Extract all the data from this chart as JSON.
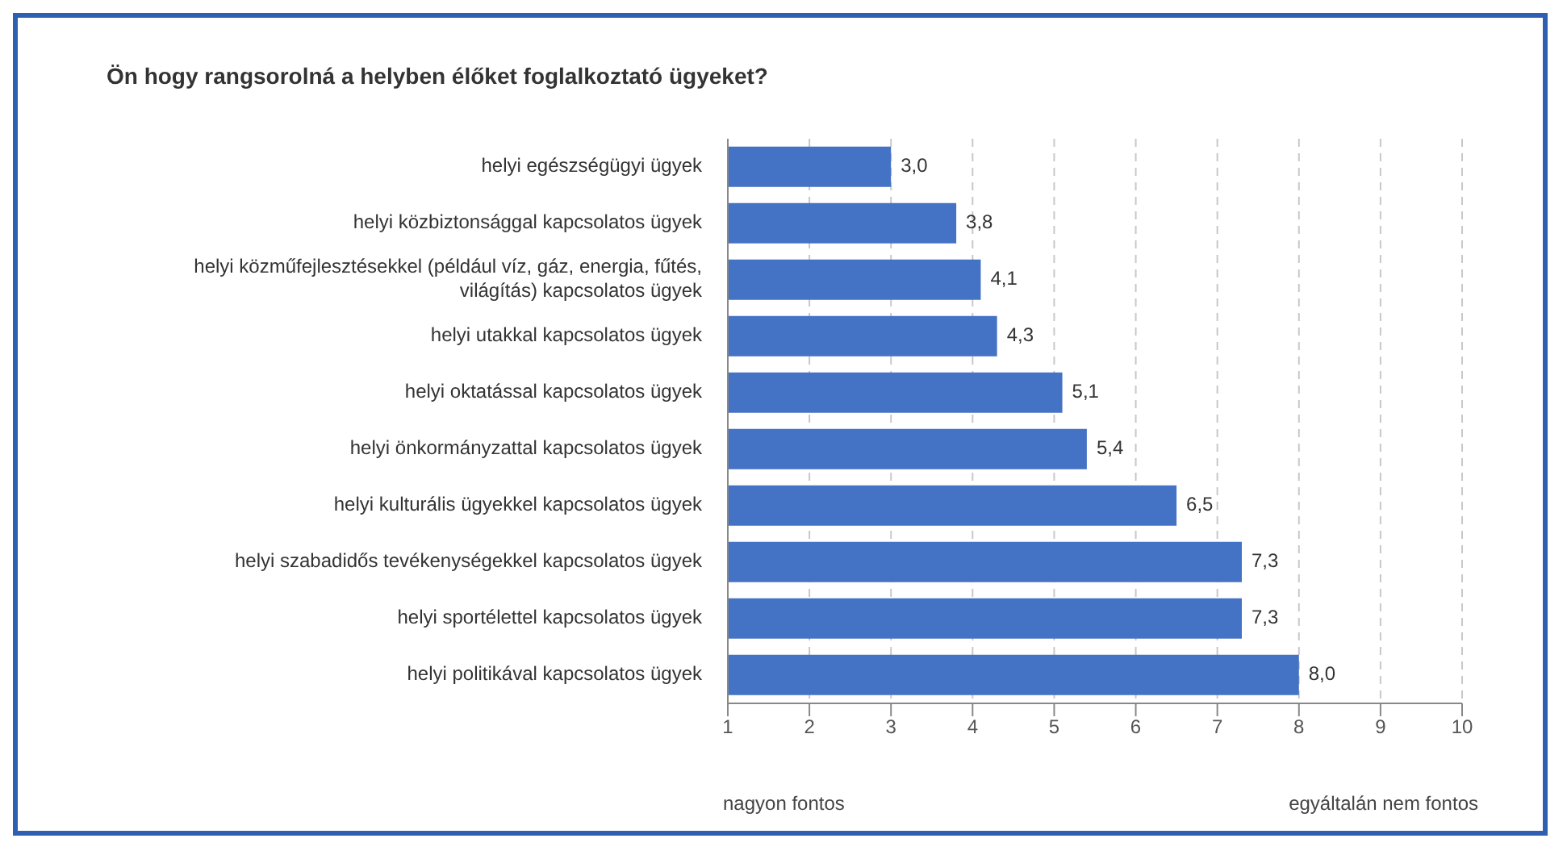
{
  "chart_data": {
    "type": "bar",
    "orientation": "horizontal",
    "title": "Ön hogy rangsorolná a helyben élőket foglalkoztató ügyeket?",
    "categories": [
      "helyi egészségügyi ügyek",
      "helyi közbiztonsággal kapcsolatos ügyek",
      "helyi közműfejlesztésekkel (például víz, gáz, energia, fűtés, világítás) kapcsolatos ügyek",
      "helyi utakkal kapcsolatos ügyek",
      "helyi oktatással kapcsolatos ügyek",
      "helyi önkormányzattal kapcsolatos ügyek",
      "helyi kulturális ügyekkel kapcsolatos ügyek",
      "helyi szabadidős tevékenységekkel kapcsolatos ügyek",
      "helyi sportélettel kapcsolatos ügyek",
      "helyi politikával kapcsolatos ügyek"
    ],
    "values": [
      3.0,
      3.8,
      4.1,
      4.3,
      5.1,
      5.4,
      6.5,
      7.3,
      7.3,
      8.0
    ],
    "value_labels": [
      "3,0",
      "3,8",
      "4,1",
      "4,3",
      "5,1",
      "5,4",
      "6,5",
      "7,3",
      "7,3",
      "8,0"
    ],
    "color": "#4472c4",
    "xlim": [
      1,
      10
    ],
    "xticks": [
      1,
      2,
      3,
      4,
      5,
      6,
      7,
      8,
      9,
      10
    ],
    "grid": "x",
    "annotations": [
      "nagyon fontos",
      "egyáltalán nem fontos"
    ]
  }
}
